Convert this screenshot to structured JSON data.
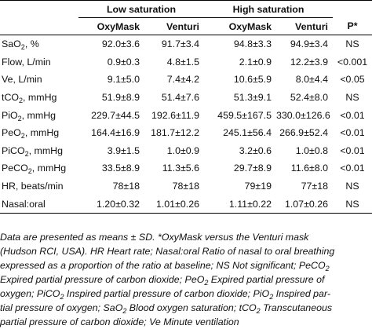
{
  "table": {
    "group_headers": [
      "Low saturation",
      "High saturation"
    ],
    "column_headers": [
      "OxyMask",
      "Venturi",
      "OxyMask",
      "Venturi",
      "P*"
    ],
    "rows": [
      {
        "label_main": "SaO",
        "label_sub": "2",
        "label_tail": ", %",
        "cells": [
          "92.0±3.6",
          "91.7±3.4",
          "94.8±3.3",
          "94.9±3.4",
          "NS"
        ]
      },
      {
        "label_main": "Flow, L/min",
        "label_sub": "",
        "label_tail": "",
        "cells": [
          "0.9±0.3",
          "4.8±1.5",
          "2.1±0.9",
          "12.2±3.9",
          "<0.001"
        ]
      },
      {
        "label_main": "Ve, L/min",
        "label_sub": "",
        "label_tail": "",
        "cells": [
          "9.1±5.0",
          "7.4±4.2",
          "10.6±5.9",
          "8.0±4.4",
          "<0.05"
        ]
      },
      {
        "label_main": "tCO",
        "label_sub": "2",
        "label_tail": ", mmHg",
        "cells": [
          "51.9±8.9",
          "51.4±7.6",
          "51.3±9.1",
          "52.4±8.0",
          "NS"
        ]
      },
      {
        "label_main": "PiO",
        "label_sub": "2",
        "label_tail": ", mmHg",
        "cells": [
          "229.7±44.5",
          "192.6±11.9",
          "459.5±167.5",
          "330.0±126.6",
          "<0.01"
        ]
      },
      {
        "label_main": "PeO",
        "label_sub": "2",
        "label_tail": ", mmHg",
        "cells": [
          "164.4±16.9",
          "181.7±12.2",
          "245.1±56.4",
          "266.9±52.4",
          "<0.01"
        ]
      },
      {
        "label_main": "PiCO",
        "label_sub": "2",
        "label_tail": ", mmHg",
        "cells": [
          "3.9±1.5",
          "1.0±0.9",
          "3.2±0.6",
          "1.0±0.8",
          "<0.01"
        ]
      },
      {
        "label_main": "PeCO",
        "label_sub": "2",
        "label_tail": ", mmHg",
        "cells": [
          "33.5±8.9",
          "11.3±5.6",
          "29.7±8.9",
          "11.6±8.0",
          "<0.01"
        ]
      },
      {
        "label_main": "HR, beats/min",
        "label_sub": "",
        "label_tail": "",
        "cells": [
          "78±18",
          "78±18",
          "79±19",
          "77±18",
          "NS"
        ]
      },
      {
        "label_main": "Nasal:oral",
        "label_sub": "",
        "label_tail": "",
        "cells": [
          "1.20±0.32",
          "1.01±0.26",
          "1.11±0.22",
          "1.07±0.26",
          "NS"
        ]
      }
    ]
  },
  "footnote": {
    "lines": [
      [
        {
          "t": "Data are presented as means ± SD. *OxyMask versus the Venturi mask"
        }
      ],
      [
        {
          "t": "(Hudson RCI, USA). HR Heart rate; Nasal:oral Ratio of nasal to oral breathing"
        }
      ],
      [
        {
          "t": "expressed as a proportion of the ratio at baseline; NS Not significant; PeCO"
        },
        {
          "s": "2"
        }
      ],
      [
        {
          "t": "Expired partial pressure of carbon dioxide; PeO"
        },
        {
          "s": "2"
        },
        {
          "t": " Expired partial pressure of"
        }
      ],
      [
        {
          "t": "oxygen; PiCO"
        },
        {
          "s": "2"
        },
        {
          "t": " Inspired partial pressure of carbon dioxide; PiO"
        },
        {
          "s": "2"
        },
        {
          "t": " Inspired par-"
        }
      ],
      [
        {
          "t": "tial pressure of oxygen; SaO"
        },
        {
          "s": "2"
        },
        {
          "t": " Blood oxygen saturation; tCO"
        },
        {
          "s": "2"
        },
        {
          "t": " Transcutaneous"
        }
      ],
      [
        {
          "t": "partial pressure of carbon dioxide; Ve Minute ventilation"
        }
      ]
    ]
  }
}
